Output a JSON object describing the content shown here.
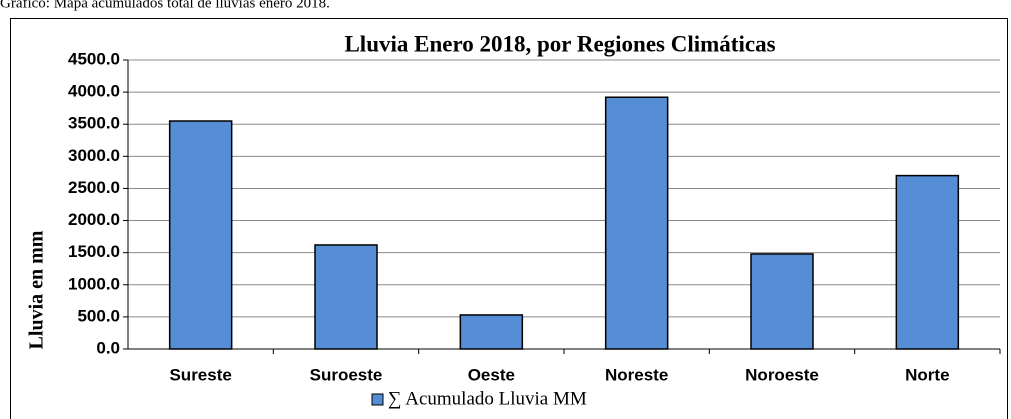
{
  "caption": "Gráfico: Mapa acumulados total de lluvias enero 2018.",
  "chart_data": {
    "type": "bar",
    "title": "Lluvia Enero 2018, por Regiones Climáticas",
    "y_label": "Lluvia en mm",
    "categories": [
      "Sureste",
      "Suroeste",
      "Oeste",
      "Noreste",
      "Noroeste",
      "Norte"
    ],
    "series": [
      {
        "name": "∑ Acumulado Lluvia MM",
        "color": "#558ed5",
        "values": [
          3550,
          1620,
          530,
          3920,
          1480,
          2700
        ]
      }
    ],
    "ylim": [
      0,
      4500
    ],
    "yticks": [
      {
        "value": 0,
        "label": "0.0"
      },
      {
        "value": 500,
        "label": "500.0"
      },
      {
        "value": 1000,
        "label": "1000.0"
      },
      {
        "value": 1500,
        "label": "1500.0"
      },
      {
        "value": 2000,
        "label": "2000.0"
      },
      {
        "value": 2500,
        "label": "2500.0"
      },
      {
        "value": 3000,
        "label": "3000.0"
      },
      {
        "value": 3500,
        "label": "3500.0"
      },
      {
        "value": 4000,
        "label": "4000.0"
      },
      {
        "value": 4500,
        "label": "4500.0"
      }
    ],
    "grid": true,
    "legend": "bottom"
  }
}
